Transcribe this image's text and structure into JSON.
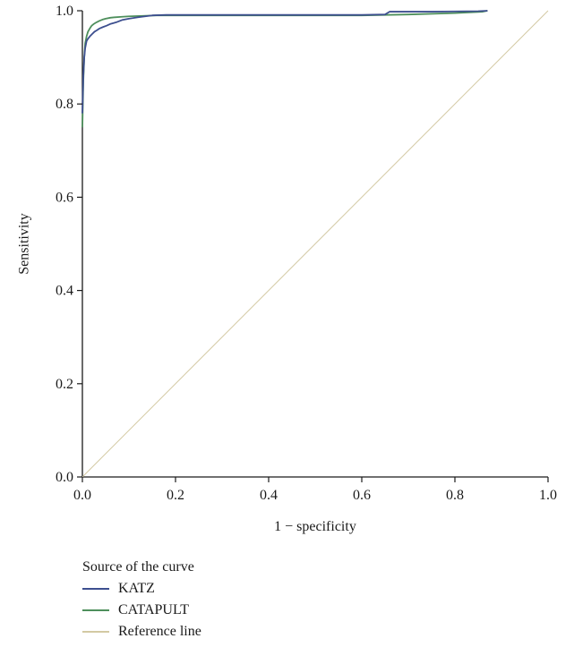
{
  "chart_data": {
    "type": "line",
    "xlabel": "1 − specificity",
    "ylabel": "Sensitivity",
    "xlim": [
      0,
      1
    ],
    "ylim": [
      0,
      1
    ],
    "xticks": [
      "0.0",
      "0.2",
      "0.4",
      "0.6",
      "0.8",
      "1.0"
    ],
    "yticks": [
      "0.0",
      "0.2",
      "0.4",
      "0.6",
      "0.8",
      "1.0"
    ],
    "grid": false,
    "legend_title": "Source of the curve",
    "legend_position": "bottom-left",
    "series": [
      {
        "name": "KATZ",
        "color": "#3d4f8f",
        "x": [
          0,
          0.002,
          0.004,
          0.006,
          0.009,
          0.012,
          0.016,
          0.021,
          0.026,
          0.031,
          0.037,
          0.044,
          0.052,
          0.061,
          0.072,
          0.085,
          0.1,
          0.12,
          0.15,
          0.18,
          0.3,
          0.45,
          0.6,
          0.65,
          0.66,
          0.75,
          0.85,
          0.87
        ],
        "y": [
          0.78,
          0.86,
          0.9,
          0.92,
          0.935,
          0.94,
          0.945,
          0.95,
          0.955,
          0.958,
          0.962,
          0.965,
          0.968,
          0.972,
          0.975,
          0.98,
          0.983,
          0.986,
          0.99,
          0.991,
          0.991,
          0.991,
          0.991,
          0.992,
          0.998,
          0.998,
          0.999,
          1.0
        ]
      },
      {
        "name": "CATAPULT",
        "color": "#4e8f5c",
        "x": [
          0,
          0.002,
          0.004,
          0.006,
          0.009,
          0.012,
          0.016,
          0.02,
          0.025,
          0.03,
          0.036,
          0.043,
          0.05,
          0.06,
          0.07,
          0.085,
          0.1,
          0.13,
          0.16,
          0.2,
          0.3,
          0.45,
          0.6,
          0.7,
          0.8,
          0.86,
          0.87
        ],
        "y": [
          0.75,
          0.85,
          0.9,
          0.93,
          0.945,
          0.955,
          0.962,
          0.968,
          0.972,
          0.975,
          0.978,
          0.981,
          0.983,
          0.985,
          0.986,
          0.987,
          0.988,
          0.989,
          0.99,
          0.99,
          0.99,
          0.99,
          0.99,
          0.992,
          0.995,
          0.998,
          1.0
        ]
      },
      {
        "name": "Reference line",
        "color": "#d3c9a3",
        "x": [
          0,
          1
        ],
        "y": [
          0,
          1
        ]
      }
    ]
  }
}
